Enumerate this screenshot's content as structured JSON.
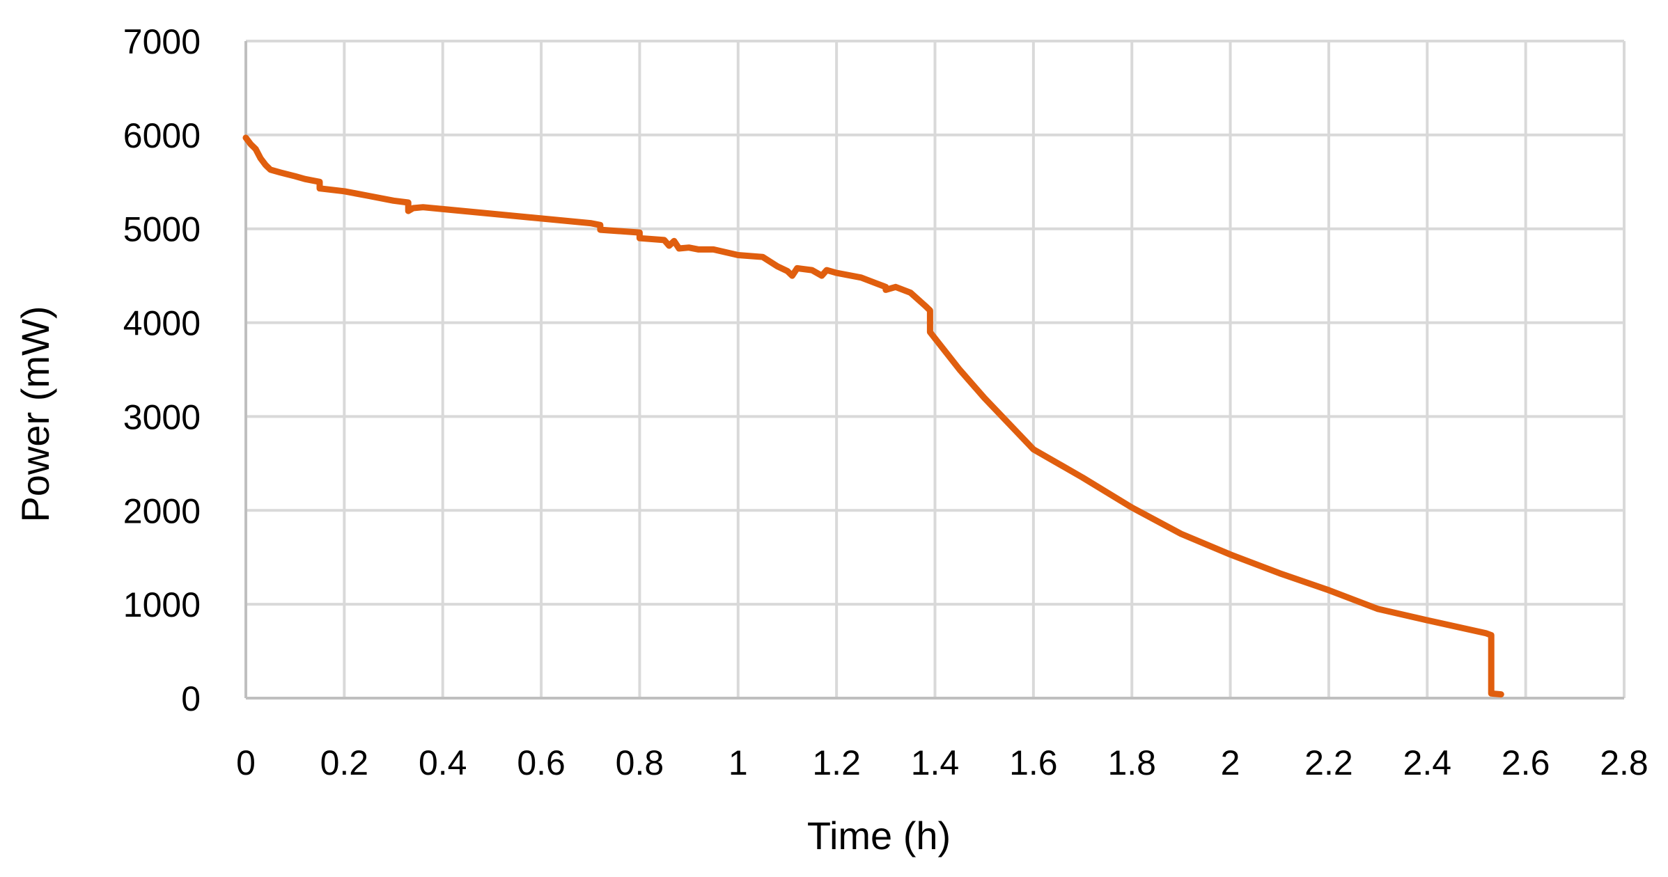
{
  "chart_data": {
    "type": "line",
    "title": "",
    "xlabel": "Time (h)",
    "ylabel": "Power (mW)",
    "xlim": [
      0,
      2.8
    ],
    "ylim": [
      0,
      7000
    ],
    "x_ticks": [
      {
        "value": 0,
        "label": "0"
      },
      {
        "value": 0.2,
        "label": "0.2"
      },
      {
        "value": 0.4,
        "label": "0.4"
      },
      {
        "value": 0.6,
        "label": "0.6"
      },
      {
        "value": 0.8,
        "label": "0.8"
      },
      {
        "value": 1,
        "label": "1"
      },
      {
        "value": 1.2,
        "label": "1.2"
      },
      {
        "value": 1.4,
        "label": "1.4"
      },
      {
        "value": 1.6,
        "label": "1.6"
      },
      {
        "value": 1.8,
        "label": "1.8"
      },
      {
        "value": 2,
        "label": "2"
      },
      {
        "value": 2.2,
        "label": "2.2"
      },
      {
        "value": 2.4,
        "label": "2.4"
      },
      {
        "value": 2.6,
        "label": "2.6"
      },
      {
        "value": 2.8,
        "label": "2.8"
      }
    ],
    "y_ticks": [
      {
        "value": 0,
        "label": "0"
      },
      {
        "value": 1000,
        "label": "1000"
      },
      {
        "value": 2000,
        "label": "2000"
      },
      {
        "value": 3000,
        "label": "3000"
      },
      {
        "value": 4000,
        "label": "4000"
      },
      {
        "value": 5000,
        "label": "5000"
      },
      {
        "value": 6000,
        "label": "6000"
      },
      {
        "value": 7000,
        "label": "7000"
      }
    ],
    "grid": true,
    "legend": "none",
    "colors": {
      "line": "#E05E0E",
      "grid": "#D9D9D9",
      "axis": "#BFBFBF"
    },
    "series": [
      {
        "x": [
          0,
          0.01,
          0.02,
          0.03,
          0.04,
          0.05,
          0.07,
          0.1,
          0.12,
          0.15,
          0.15,
          0.2,
          0.25,
          0.3,
          0.33,
          0.33,
          0.34,
          0.36,
          0.4,
          0.5,
          0.6,
          0.7,
          0.72,
          0.72,
          0.8,
          0.8,
          0.85,
          0.86,
          0.87,
          0.88,
          0.9,
          0.92,
          0.95,
          1.0,
          1.05,
          1.08,
          1.1,
          1.11,
          1.12,
          1.15,
          1.17,
          1.18,
          1.2,
          1.25,
          1.28,
          1.3,
          1.3,
          1.32,
          1.35,
          1.38,
          1.39,
          1.39,
          1.45,
          1.5,
          1.6,
          1.7,
          1.8,
          1.9,
          2.0,
          2.1,
          2.2,
          2.3,
          2.4,
          2.52,
          2.53,
          2.53,
          2.55
        ],
        "y": [
          5970,
          5900,
          5850,
          5750,
          5680,
          5630,
          5600,
          5560,
          5530,
          5500,
          5430,
          5400,
          5350,
          5300,
          5280,
          5190,
          5220,
          5230,
          5210,
          5160,
          5110,
          5060,
          5040,
          4990,
          4960,
          4900,
          4880,
          4820,
          4870,
          4790,
          4800,
          4780,
          4780,
          4720,
          4700,
          4600,
          4550,
          4500,
          4580,
          4560,
          4500,
          4560,
          4530,
          4480,
          4420,
          4380,
          4350,
          4380,
          4320,
          4180,
          4130,
          3900,
          3500,
          3200,
          2650,
          2350,
          2030,
          1750,
          1530,
          1330,
          1150,
          950,
          830,
          690,
          670,
          50,
          40
        ]
      }
    ]
  }
}
